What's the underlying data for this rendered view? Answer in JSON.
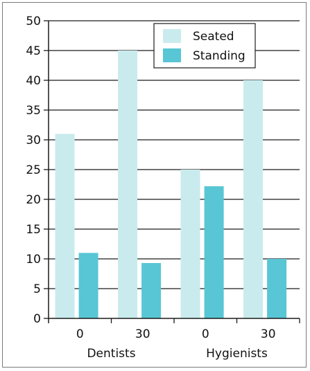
{
  "chart_data": {
    "type": "bar",
    "title": "",
    "xlabel": "",
    "ylabel": "",
    "ylim": [
      0,
      50
    ],
    "yticks": [
      0,
      5,
      10,
      15,
      20,
      25,
      30,
      35,
      40,
      45,
      50
    ],
    "grid": true,
    "legend_position": "top-right",
    "groups": [
      "Dentists",
      "Hygienists"
    ],
    "categories": [
      "0",
      "30",
      "0",
      "30"
    ],
    "series": [
      {
        "name": "Seated",
        "color": "#c9ebed",
        "values": [
          31,
          45,
          25,
          40
        ]
      },
      {
        "name": "Standing",
        "color": "#58c6d4",
        "values": [
          11,
          9.3,
          22.2,
          10
        ]
      }
    ]
  }
}
